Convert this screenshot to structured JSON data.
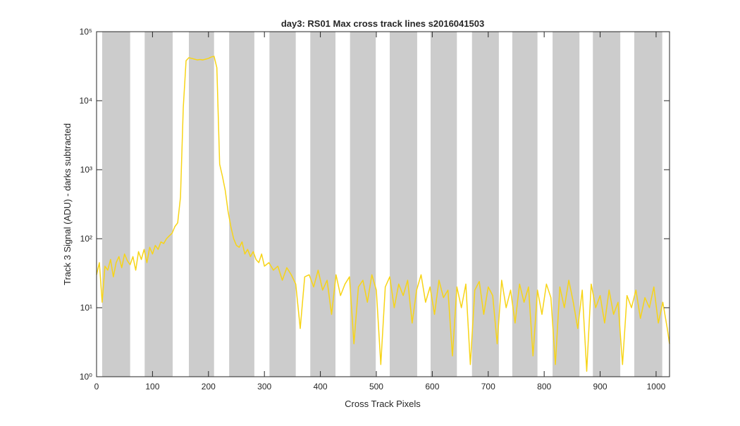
{
  "chart_data": {
    "type": "line",
    "title": "day3: RS01  Max cross track lines  s2016041503",
    "xlabel": "Cross Track Pixels",
    "ylabel": "Track 3 Signal (ADU) - darks subtracted",
    "xlim": [
      0,
      1024
    ],
    "ylim": [
      1,
      100000
    ],
    "log_y": true,
    "xticks": [
      0,
      100,
      200,
      300,
      400,
      500,
      600,
      700,
      800,
      900,
      1000
    ],
    "yticks": [
      {
        "value": 1,
        "label": "10⁰"
      },
      {
        "value": 10,
        "label": "10¹"
      },
      {
        "value": 100,
        "label": "10²"
      },
      {
        "value": 1000,
        "label": "10³"
      },
      {
        "value": 10000,
        "label": "10⁴"
      },
      {
        "value": 100000,
        "label": "10⁵"
      }
    ],
    "band_color": "#cccccc",
    "bands": [
      [
        10,
        60
      ],
      [
        86,
        136
      ],
      [
        165,
        210
      ],
      [
        237,
        282
      ],
      [
        309,
        356
      ],
      [
        382,
        427
      ],
      [
        453,
        499
      ],
      [
        524,
        573
      ],
      [
        597,
        644
      ],
      [
        671,
        719
      ],
      [
        743,
        788
      ],
      [
        815,
        863
      ],
      [
        887,
        936
      ],
      [
        961,
        1011
      ]
    ],
    "color": "#f7d417",
    "x": [
      0,
      5,
      10,
      15,
      20,
      25,
      30,
      35,
      40,
      45,
      50,
      55,
      60,
      65,
      70,
      75,
      80,
      85,
      90,
      95,
      100,
      105,
      110,
      115,
      120,
      125,
      130,
      135,
      140,
      145,
      150,
      155,
      160,
      165,
      170,
      175,
      180,
      185,
      190,
      195,
      200,
      205,
      210,
      215,
      220,
      225,
      230,
      235,
      240,
      245,
      250,
      255,
      260,
      265,
      270,
      275,
      280,
      285,
      290,
      295,
      300,
      308,
      316,
      324,
      332,
      340,
      348,
      356,
      364,
      372,
      380,
      388,
      396,
      404,
      412,
      420,
      428,
      436,
      444,
      452,
      460,
      468,
      476,
      484,
      492,
      500,
      508,
      516,
      524,
      532,
      540,
      548,
      556,
      564,
      572,
      580,
      588,
      596,
      604,
      612,
      620,
      628,
      636,
      644,
      652,
      660,
      668,
      676,
      684,
      692,
      700,
      708,
      716,
      724,
      732,
      740,
      748,
      756,
      764,
      772,
      780,
      788,
      796,
      804,
      812,
      820,
      828,
      836,
      844,
      852,
      860,
      868,
      876,
      884,
      892,
      900,
      908,
      916,
      924,
      932,
      940,
      948,
      956,
      964,
      972,
      980,
      988,
      996,
      1004,
      1012,
      1020,
      1024
    ],
    "values": [
      30,
      45,
      12,
      40,
      35,
      50,
      28,
      45,
      55,
      38,
      60,
      48,
      42,
      55,
      35,
      65,
      50,
      70,
      45,
      75,
      60,
      80,
      70,
      90,
      85,
      100,
      110,
      120,
      150,
      170,
      400,
      8000,
      38000,
      42000,
      41000,
      40000,
      39000,
      39500,
      39000,
      40000,
      41000,
      43000,
      44000,
      30000,
      1200,
      800,
      500,
      250,
      150,
      100,
      80,
      75,
      90,
      60,
      70,
      55,
      65,
      50,
      45,
      60,
      40,
      45,
      35,
      40,
      25,
      38,
      30,
      22,
      5,
      28,
      30,
      20,
      35,
      18,
      25,
      8,
      30,
      15,
      22,
      28,
      3,
      20,
      25,
      12,
      30,
      18,
      1.5,
      20,
      28,
      10,
      22,
      15,
      25,
      6,
      18,
      30,
      12,
      20,
      8,
      25,
      14,
      18,
      2,
      20,
      10,
      22,
      1.5,
      18,
      24,
      8,
      20,
      15,
      3,
      25,
      10,
      18,
      6,
      22,
      12,
      20,
      2,
      18,
      8,
      22,
      14,
      1.5,
      20,
      10,
      25,
      12,
      5,
      18,
      1.2,
      22,
      10,
      15,
      6,
      18,
      8,
      12,
      1.5,
      15,
      10,
      18,
      7,
      14,
      10,
      20,
      6,
      12,
      5,
      3
    ]
  }
}
